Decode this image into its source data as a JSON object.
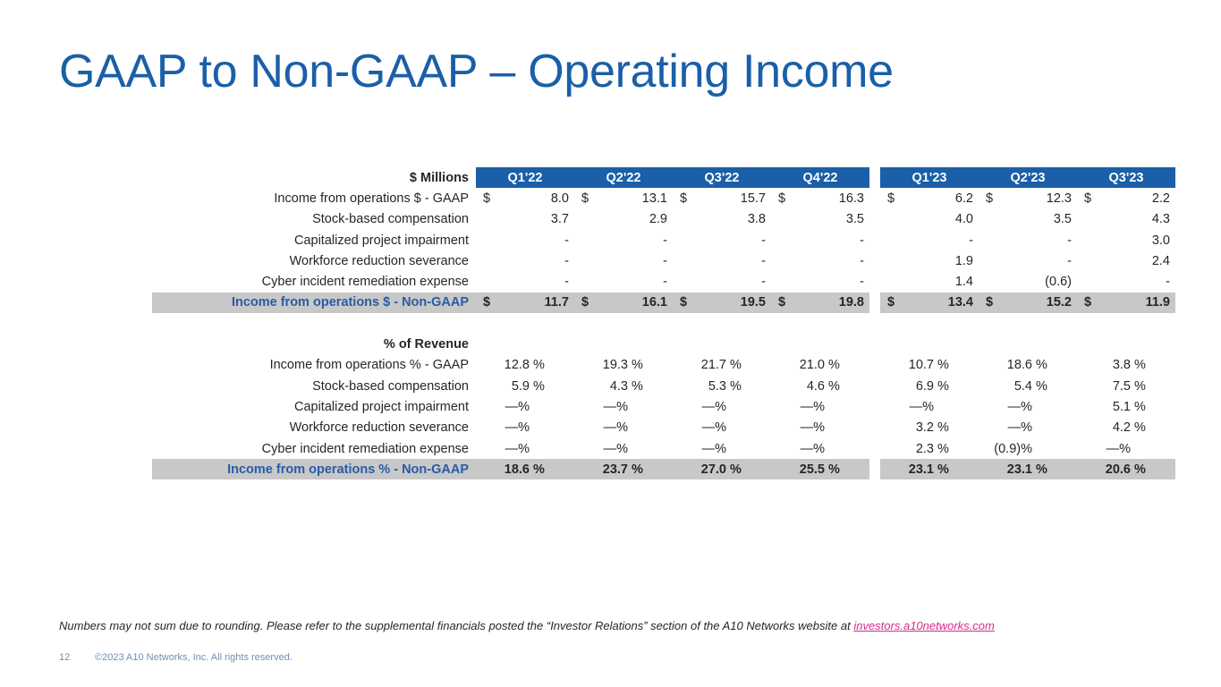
{
  "title": "GAAP to Non-GAAP – Operating Income",
  "header": {
    "label": "$ Millions",
    "quarters_2022": [
      "Q1'22",
      "Q2'22",
      "Q3'22",
      "Q4'22"
    ],
    "quarters_2023": [
      "Q1'23",
      "Q2'23",
      "Q3'23"
    ]
  },
  "dollar_rows": [
    {
      "label": "Income from operations $ - GAAP",
      "values": [
        "8.0",
        "13.1",
        "15.7",
        "16.3",
        "6.2",
        "12.3",
        "2.2"
      ],
      "currency": "$"
    },
    {
      "label": "Stock-based compensation",
      "values": [
        "3.7",
        "2.9",
        "3.8",
        "3.5",
        "4.0",
        "3.5",
        "4.3"
      ],
      "currency": ""
    },
    {
      "label": "Capitalized project impairment",
      "values": [
        "-",
        "-",
        "-",
        "-",
        "-",
        "-",
        "3.0"
      ],
      "currency": ""
    },
    {
      "label": "Workforce reduction severance",
      "values": [
        "-",
        "-",
        "-",
        "-",
        "1.9",
        "-",
        "2.4"
      ],
      "currency": ""
    },
    {
      "label": "Cyber incident remediation expense",
      "values": [
        "-",
        "-",
        "-",
        "-",
        "1.4",
        "(0.6)",
        "-"
      ],
      "currency": ""
    }
  ],
  "dollar_total": {
    "label": "Income from operations $ - Non-GAAP",
    "values": [
      "11.7",
      "16.1",
      "19.5",
      "19.8",
      "13.4",
      "15.2",
      "11.9"
    ],
    "currency": "$"
  },
  "percent_section_label": "% of Revenue",
  "percent_rows": [
    {
      "label": "Income from operations % - GAAP",
      "values": [
        [
          "12.8",
          "%"
        ],
        [
          "19.3",
          "%"
        ],
        [
          "21.7",
          "%"
        ],
        [
          "21.0",
          "%"
        ],
        [
          "10.7",
          "%"
        ],
        [
          "18.6",
          "%"
        ],
        [
          "3.8",
          "%"
        ]
      ]
    },
    {
      "label": "Stock-based compensation",
      "values": [
        [
          "5.9",
          "%"
        ],
        [
          "4.3",
          "%"
        ],
        [
          "5.3",
          "%"
        ],
        [
          "4.6",
          "%"
        ],
        [
          "6.9",
          "%"
        ],
        [
          "5.4",
          "%"
        ],
        [
          "7.5",
          "%"
        ]
      ]
    },
    {
      "label": "Capitalized project impairment",
      "values": [
        [
          "—%",
          ""
        ],
        [
          "—%",
          ""
        ],
        [
          "—%",
          ""
        ],
        [
          "—%",
          ""
        ],
        [
          "—%",
          ""
        ],
        [
          "—%",
          ""
        ],
        [
          "5.1",
          "%"
        ]
      ]
    },
    {
      "label": "Workforce reduction severance",
      "values": [
        [
          "—%",
          ""
        ],
        [
          "—%",
          ""
        ],
        [
          "—%",
          ""
        ],
        [
          "—%",
          ""
        ],
        [
          "3.2",
          "%"
        ],
        [
          "—%",
          ""
        ],
        [
          "4.2",
          "%"
        ]
      ]
    },
    {
      "label": "Cyber incident remediation expense",
      "values": [
        [
          "—%",
          ""
        ],
        [
          "—%",
          ""
        ],
        [
          "—%",
          ""
        ],
        [
          "—%",
          ""
        ],
        [
          "2.3",
          "%"
        ],
        [
          "(0.9)%",
          ""
        ],
        [
          "—%",
          ""
        ]
      ]
    }
  ],
  "percent_total": {
    "label": "Income from operations % - Non-GAAP",
    "values": [
      [
        "18.6",
        "%"
      ],
      [
        "23.7",
        "%"
      ],
      [
        "27.0",
        "%"
      ],
      [
        "25.5",
        "%"
      ],
      [
        "23.1",
        "%"
      ],
      [
        "23.1",
        "%"
      ],
      [
        "20.6",
        "%"
      ]
    ]
  },
  "footnote": {
    "text": "Numbers may not sum due to rounding. Please refer to the supplemental financials posted the “Investor Relations” section of the A10 Networks website at ",
    "link_text": "investors.a10networks.com"
  },
  "page_number": "12",
  "copyright": "©2023 A10 Networks, Inc. All rights reserved."
}
